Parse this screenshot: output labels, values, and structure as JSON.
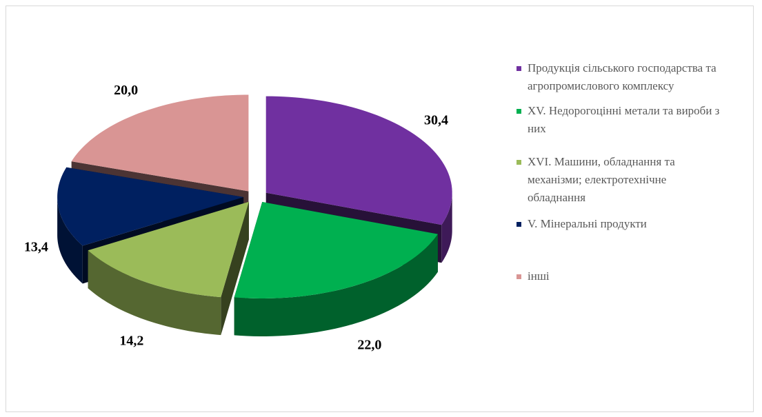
{
  "chart_data": {
    "type": "pie3d",
    "categories": [
      "Продукція сільського господарства та агропромислового комплексу",
      "XV. Недорогоцінні метали та вироби з них",
      "XVI. Машини, обладнання та механізми; електротехнічне обладнання",
      "V. Мінеральні продукти",
      "інші"
    ],
    "values": [
      30.4,
      22.0,
      14.2,
      13.4,
      20.0
    ],
    "value_labels": [
      "30,4",
      "22,0",
      "14,2",
      "13,4",
      "20,0"
    ],
    "colors": [
      "#7030a0",
      "#00b050",
      "#9bbb59",
      "#002060",
      "#d99594"
    ],
    "legend": "right"
  }
}
